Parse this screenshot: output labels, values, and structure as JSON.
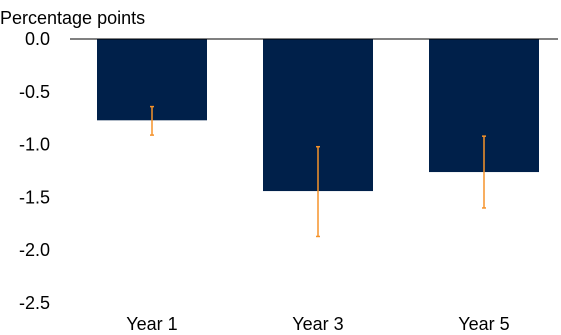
{
  "chart_data": {
    "type": "bar",
    "ylabel": "Percentage points",
    "categories": [
      "Year 1",
      "Year 3",
      "Year 5"
    ],
    "values": [
      -0.77,
      -1.44,
      -1.26
    ],
    "error_bars": {
      "upper": [
        -0.64,
        -1.02,
        -0.92
      ],
      "lower": [
        -0.91,
        -1.87,
        -1.6
      ]
    },
    "y_ticks": [
      "0.0",
      "-0.5",
      "-1.0",
      "-1.5",
      "-2.0",
      "-2.5"
    ],
    "y_tick_values": [
      0,
      -0.5,
      -1.0,
      -1.5,
      -2.0,
      -2.5
    ],
    "ylim": [
      -2.5,
      0
    ],
    "grid": false,
    "colors": {
      "bar": "#00204a",
      "error": "#f5922a",
      "axis": "#000000"
    }
  }
}
